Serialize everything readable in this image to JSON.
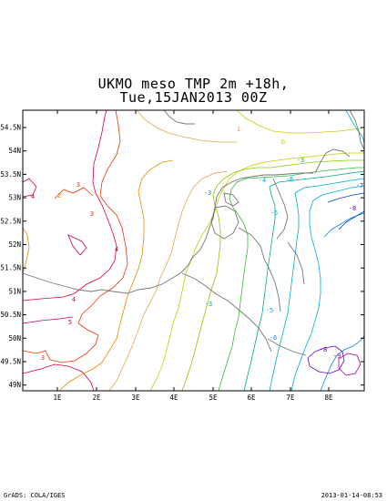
{
  "title": {
    "line1": "UKMO meso TMP 2m +18h,",
    "line2": "Tue,15JAN2013 00Z"
  },
  "axes": {
    "x_ticks": [
      "1E",
      "2E",
      "3E",
      "4E",
      "5E",
      "6E",
      "7E",
      "8E"
    ],
    "y_ticks": [
      "54.5N",
      "54N",
      "53.5N",
      "53N",
      "52.5N",
      "52N",
      "51.5N",
      "51N",
      "50.5N",
      "50N",
      "49.5N",
      "49N"
    ]
  },
  "contour_labels": [
    "-3",
    "-3",
    "-3",
    "-4",
    "-5",
    "-5",
    "-6",
    "-6",
    "-7",
    "-8",
    "-8",
    "-9",
    "0",
    "1",
    "2",
    "3",
    "3",
    "3",
    "4",
    "4",
    "4",
    "5"
  ],
  "colors": {
    "positive_5": "#cc0066",
    "positive_4": "#dd0033",
    "positive_3": "#ee3300",
    "positive_2": "#ee8800",
    "positive_1": "#ddaa44",
    "zero": "#cccc00",
    "neg_1": "#88cc00",
    "neg_2": "#33bb33",
    "neg_3": "#00aa88",
    "neg_4": "#00aacc",
    "neg_5": "#00aadd",
    "neg_6": "#0088ee",
    "neg_7": "#0044cc",
    "neg_8": "#6600cc",
    "neg_9": "#aa00aa",
    "coast": "#777777"
  },
  "footer": {
    "left": "GrADS: COLA/IGES",
    "right": "2013-01-14-08:53"
  }
}
